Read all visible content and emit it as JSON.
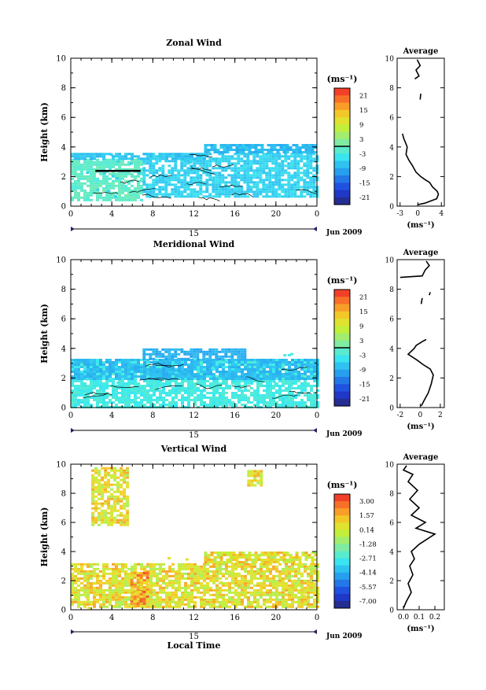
{
  "chart_data": [
    {
      "type": "heatmap",
      "title": "Zonal Wind",
      "ylabel": "Height (km)",
      "xlabel": "",
      "x_ticks": [
        "0",
        "4",
        "8",
        "12",
        "16",
        "20",
        "0"
      ],
      "y_ticks": [
        "0",
        "2",
        "4",
        "6",
        "8",
        "10"
      ],
      "xlim": [
        0,
        24
      ],
      "ylim": [
        0,
        10
      ],
      "day_label": "15",
      "month_label": "Jun 2009",
      "colorbar": {
        "unit": "(ms⁻¹)",
        "tick_labels": [
          "21",
          "15",
          "9",
          "3",
          "-3",
          "-9",
          "-15",
          "-21"
        ],
        "range": [
          -24,
          24
        ],
        "zero_line": 0
      },
      "dominant_value": -6,
      "coverage": [
        {
          "x0": 0,
          "x1": 7,
          "y0": 0.4,
          "y1": 3.2,
          "v": -1
        },
        {
          "x0": 7,
          "x1": 24,
          "y0": 0.6,
          "y1": 3.6,
          "v": -6
        },
        {
          "x0": 13,
          "x1": 24,
          "y0": 3.6,
          "y1": 4.2,
          "v": -8
        },
        {
          "x0": 0,
          "x1": 13,
          "y0": 3.2,
          "y1": 3.6,
          "v": -7
        }
      ],
      "black_bar": {
        "x0": 2.4,
        "x1": 6.8,
        "y0": 2.35,
        "y1": 2.45
      },
      "average_profile": {
        "title": "Average",
        "unit": "(ms⁻¹)",
        "x_ticks": [
          "-3",
          "0",
          "4"
        ],
        "xlim": [
          -3.5,
          4.5
        ],
        "y_ticks": [
          "0",
          "2",
          "4",
          "6",
          "8",
          "10"
        ],
        "ylim": [
          0,
          10
        ],
        "segments": [
          [
            [
              0,
              0.1
            ],
            [
              1.2,
              0.2
            ],
            [
              3.2,
              0.5
            ],
            [
              3.5,
              0.8
            ],
            [
              3.3,
              1.0
            ],
            [
              2.5,
              1.3
            ],
            [
              2,
              1.6
            ],
            [
              1.2,
              1.8
            ],
            [
              0.5,
              2.0
            ],
            [
              -0.3,
              2.3
            ],
            [
              -1,
              2.8
            ],
            [
              -1.5,
              3.1
            ],
            [
              -2,
              3.5
            ],
            [
              -1.8,
              4.0
            ],
            [
              -2.4,
              4.6
            ],
            [
              -2.6,
              4.9
            ]
          ],
          [
            [
              0.4,
              7.2
            ],
            [
              0.5,
              7.6
            ]
          ],
          [
            [
              -0.5,
              8.6
            ],
            [
              0.2,
              8.8
            ],
            [
              -0.3,
              9.2
            ],
            [
              0.4,
              9.5
            ],
            [
              -0.1,
              9.9
            ]
          ]
        ]
      }
    },
    {
      "type": "heatmap",
      "title": "Meridional Wind",
      "ylabel": "Height (km)",
      "xlabel": "",
      "x_ticks": [
        "0",
        "4",
        "8",
        "12",
        "16",
        "20",
        "0"
      ],
      "y_ticks": [
        "0",
        "2",
        "4",
        "6",
        "8",
        "10"
      ],
      "xlim": [
        0,
        24
      ],
      "ylim": [
        0,
        10
      ],
      "day_label": "15",
      "month_label": "Jun 2009",
      "colorbar": {
        "unit": "(ms⁻¹)",
        "tick_labels": [
          "21",
          "15",
          "9",
          "3",
          "-3",
          "-9",
          "-15",
          "-21"
        ],
        "range": [
          -24,
          24
        ],
        "zero_line": 0
      },
      "dominant_value": -3,
      "coverage": [
        {
          "x0": 0,
          "x1": 24,
          "y0": 0.0,
          "y1": 3.3,
          "v": -3
        },
        {
          "x0": 0,
          "x1": 24,
          "y0": 2.0,
          "y1": 3.3,
          "v": -8
        },
        {
          "x0": 7,
          "x1": 17,
          "y0": 3.3,
          "y1": 4.0,
          "v": -9
        }
      ],
      "average_profile": {
        "title": "Average",
        "unit": "(ms⁻¹)",
        "x_ticks": [
          "-2",
          "0",
          "2"
        ],
        "xlim": [
          -2.3,
          2.4
        ],
        "y_ticks": [
          "0",
          "2",
          "4",
          "6",
          "8",
          "10"
        ],
        "ylim": [
          0,
          10
        ],
        "segments": [
          [
            [
              0.1,
              0.1
            ],
            [
              0.4,
              0.5
            ],
            [
              0.8,
              1.0
            ],
            [
              1.1,
              1.6
            ],
            [
              1.3,
              2.2
            ],
            [
              1.0,
              2.6
            ],
            [
              0.3,
              2.9
            ],
            [
              -0.3,
              3.2
            ],
            [
              -1.2,
              3.6
            ],
            [
              -0.6,
              4.0
            ],
            [
              -0.4,
              4.2
            ],
            [
              0.3,
              4.5
            ],
            [
              0.6,
              4.6
            ]
          ],
          [
            [
              0.1,
              7.0
            ],
            [
              0.2,
              7.4
            ]
          ],
          [
            [
              0.9,
              7.6
            ],
            [
              1.0,
              7.8
            ]
          ],
          [
            [
              -2,
              8.8
            ],
            [
              0.2,
              8.9
            ],
            [
              0.5,
              9.3
            ],
            [
              0.9,
              9.6
            ],
            [
              0.6,
              9.9
            ]
          ]
        ]
      }
    },
    {
      "type": "heatmap",
      "title": "Vertical Wind",
      "ylabel": "Height (km)",
      "xlabel": "Local Time",
      "x_ticks": [
        "0",
        "4",
        "8",
        "12",
        "16",
        "20",
        "0"
      ],
      "y_ticks": [
        "0",
        "2",
        "4",
        "6",
        "8",
        "10"
      ],
      "xlim": [
        0,
        24
      ],
      "ylim": [
        0,
        10
      ],
      "day_label": "15",
      "month_label": "Jun 2009",
      "colorbar": {
        "unit": "(ms⁻¹)",
        "tick_labels": [
          "3.00",
          "1.57",
          "0.14",
          "-1.28",
          "-2.71",
          "-4.14",
          "-5.57",
          "-7.00"
        ],
        "range": [
          -8.4,
          4.4
        ],
        "zero_line": null
      },
      "dominant_value": 0.8,
      "coverage": [
        {
          "x0": 0,
          "x1": 24,
          "y0": 0.2,
          "y1": 3.2,
          "v": 0.8
        },
        {
          "x0": 13,
          "x1": 24,
          "y0": 3.2,
          "y1": 4.0,
          "v": 0.8
        },
        {
          "x0": 5.8,
          "x1": 7.6,
          "y0": 0.3,
          "y1": 2.6,
          "v": 2.4
        },
        {
          "x0": 2.0,
          "x1": 5.4,
          "y0": 5.8,
          "y1": 9.8,
          "v": 0.8
        },
        {
          "x0": 17.2,
          "x1": 18.6,
          "y0": 8.6,
          "y1": 9.6,
          "v": 0.8
        }
      ],
      "average_profile": {
        "title": "Average",
        "unit": "(ms⁻¹)",
        "x_ticks": [
          "0.0",
          "0.1",
          "0.2"
        ],
        "xlim": [
          -0.04,
          0.26
        ],
        "y_ticks": [
          "0",
          "2",
          "4",
          "6",
          "8",
          "10"
        ],
        "ylim": [
          0,
          10
        ],
        "segments": [
          [
            [
              0.0,
              0.1
            ],
            [
              0.02,
              0.6
            ],
            [
              0.05,
              1.2
            ],
            [
              0.03,
              1.8
            ],
            [
              0.06,
              2.4
            ],
            [
              0.04,
              3.0
            ],
            [
              0.07,
              3.5
            ],
            [
              0.05,
              4.0
            ],
            [
              0.1,
              4.5
            ],
            [
              0.2,
              5.2
            ],
            [
              0.08,
              5.6
            ],
            [
              0.14,
              6.0
            ],
            [
              0.05,
              6.5
            ],
            [
              0.1,
              7.0
            ],
            [
              0.04,
              7.6
            ],
            [
              0.09,
              8.2
            ],
            [
              0.03,
              8.8
            ],
            [
              0.06,
              9.3
            ],
            [
              0.0,
              9.6
            ],
            [
              0.02,
              9.9
            ]
          ]
        ]
      }
    }
  ]
}
